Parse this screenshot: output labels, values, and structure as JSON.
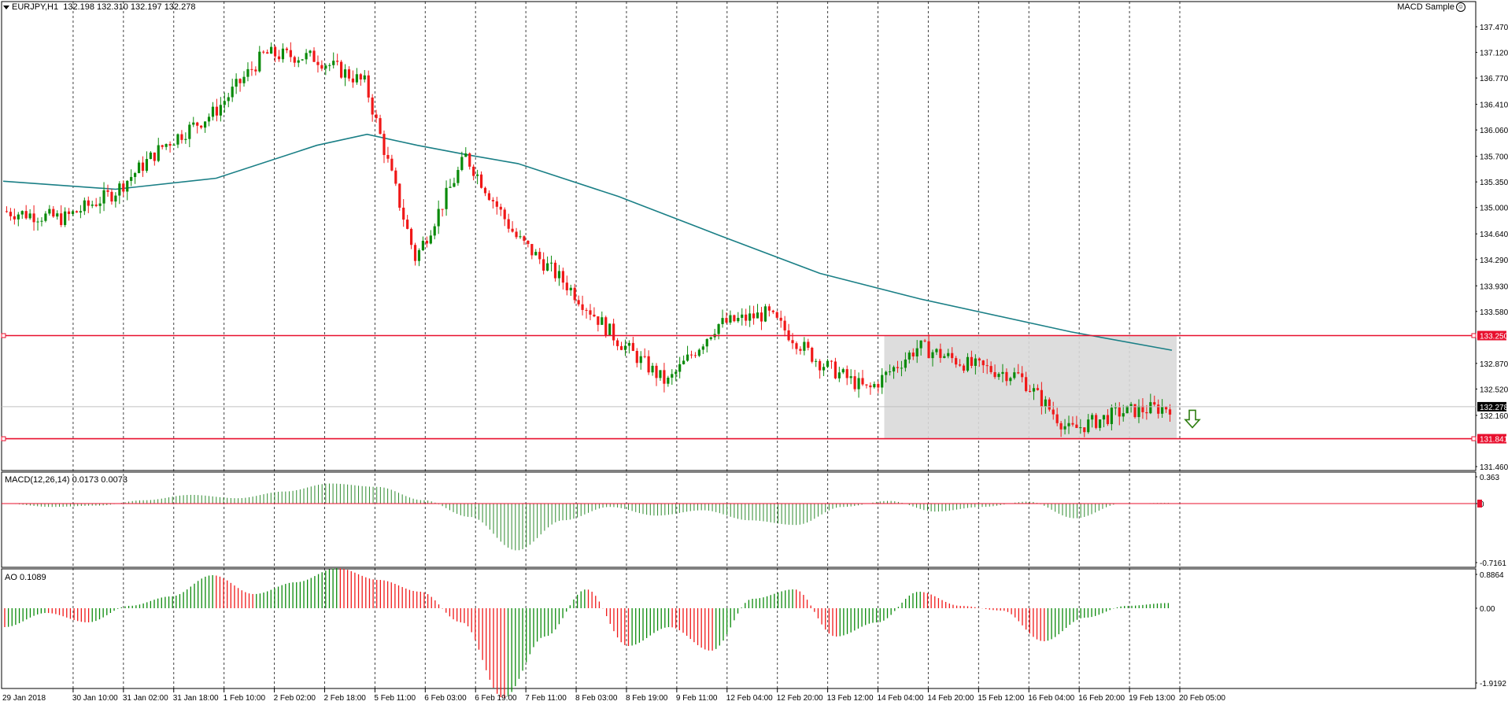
{
  "header": {
    "symbol": "EURJPY,H1",
    "ohlc": "132.198 132.310 132.197 132.278",
    "expert_name": "MACD Sample",
    "expert_icon": "smiley-icon"
  },
  "price_axis": {
    "labels": [
      "137.470",
      "137.120",
      "136.770",
      "136.410",
      "136.060",
      "135.700",
      "135.350",
      "135.000",
      "134.640",
      "134.290",
      "133.930",
      "133.580",
      "132.870",
      "132.520",
      "132.160",
      "131.460"
    ],
    "current_price": "132.278",
    "levels": [
      {
        "price": "133.250",
        "color": "#e8102e"
      },
      {
        "price": "131.841",
        "color": "#e8102e"
      }
    ]
  },
  "macd": {
    "label": "MACD(12,26,14) 0.0173 0.0073",
    "axis_top": "0.363",
    "axis_mid": "0",
    "axis_bottom": "-0.7161"
  },
  "ao": {
    "label": "AO 0.1089",
    "axis_top": "0.8864",
    "axis_mid": "0.00",
    "axis_bottom": "-1.9192"
  },
  "time_axis": [
    "29 Jan 2018",
    "30 Jan 10:00",
    "31 Jan 02:00",
    "31 Jan 18:00",
    "1 Feb 10:00",
    "2 Feb 02:00",
    "2 Feb 18:00",
    "5 Feb 11:00",
    "6 Feb 03:00",
    "6 Feb 19:00",
    "7 Feb 11:00",
    "8 Feb 03:00",
    "8 Feb 19:00",
    "9 Feb 11:00",
    "12 Feb 04:00",
    "12 Feb 20:00",
    "13 Feb 12:00",
    "14 Feb 04:00",
    "14 Feb 20:00",
    "15 Feb 12:00",
    "16 Feb 04:00",
    "16 Feb 20:00",
    "19 Feb 13:00",
    "20 Feb 05:00"
  ],
  "colors": {
    "bull": "#0a8a0a",
    "bear": "#f01818",
    "ma": "#1a7f86",
    "level": "#e8102e",
    "grid": "#000000",
    "range_box": "#d9d9d9",
    "arrow": "#2e7d10",
    "macd_hist": "#2e8b2e",
    "macd_signal": "#e8102e"
  },
  "chart_data": {
    "type": "candlestick",
    "symbol": "EURJPY",
    "timeframe": "H1",
    "price_range": [
      131.46,
      137.47
    ],
    "close_path": [
      {
        "t": "29 Jan 2018",
        "p": 134.95
      },
      {
        "t": "30 Jan 10:00",
        "p": 134.85
      },
      {
        "t": "31 Jan 02:00",
        "p": 135.2
      },
      {
        "t": "31 Jan 18:00",
        "p": 135.85
      },
      {
        "t": "1 Feb 10:00",
        "p": 136.3
      },
      {
        "t": "2 Feb 02:00",
        "p": 137.1
      },
      {
        "t": "2 Feb 18:00",
        "p": 137.05
      },
      {
        "t": "5 Feb 11:00",
        "p": 136.7
      },
      {
        "t": "6 Feb 03:00",
        "p": 134.3
      },
      {
        "t": "6 Feb 19:00",
        "p": 135.7
      },
      {
        "t": "7 Feb 11:00",
        "p": 134.6
      },
      {
        "t": "8 Feb 03:00",
        "p": 133.95
      },
      {
        "t": "8 Feb 19:00",
        "p": 133.2
      },
      {
        "t": "9 Feb 11:00",
        "p": 132.6
      },
      {
        "t": "12 Feb 04:00",
        "p": 133.4
      },
      {
        "t": "12 Feb 20:00",
        "p": 133.55
      },
      {
        "t": "13 Feb 12:00",
        "p": 132.9
      },
      {
        "t": "14 Feb 04:00",
        "p": 132.5
      },
      {
        "t": "14 Feb 20:00",
        "p": 133.1
      },
      {
        "t": "15 Feb 12:00",
        "p": 132.85
      },
      {
        "t": "16 Feb 04:00",
        "p": 132.7
      },
      {
        "t": "16 Feb 20:00",
        "p": 131.95
      },
      {
        "t": "19 Feb 13:00",
        "p": 132.2
      },
      {
        "t": "20 Feb 05:00",
        "p": 132.278
      }
    ],
    "moving_average_path": [
      {
        "t": "29 Jan 2018",
        "p": 135.36
      },
      {
        "t": "31 Jan 02:00",
        "p": 135.25
      },
      {
        "t": "1 Feb 10:00",
        "p": 135.4
      },
      {
        "t": "2 Feb 18:00",
        "p": 135.85
      },
      {
        "t": "5 Feb 11:00",
        "p": 136.0
      },
      {
        "t": "6 Feb 03:00",
        "p": 135.85
      },
      {
        "t": "6 Feb 19:00",
        "p": 135.72
      },
      {
        "t": "7 Feb 11:00",
        "p": 135.6
      },
      {
        "t": "8 Feb 19:00",
        "p": 135.15
      },
      {
        "t": "12 Feb 04:00",
        "p": 134.62
      },
      {
        "t": "13 Feb 12:00",
        "p": 134.1
      },
      {
        "t": "14 Feb 20:00",
        "p": 133.75
      },
      {
        "t": "16 Feb 20:00",
        "p": 133.3
      },
      {
        "t": "20 Feb 05:00",
        "p": 133.05
      }
    ],
    "levels": [
      133.25,
      131.841
    ],
    "range_box": {
      "from": "14 Feb 04:00",
      "to": "20 Feb 05:00",
      "top": 133.25,
      "bottom": 131.841
    },
    "signal_arrow": "down",
    "macd_hist": [
      0.0,
      -0.05,
      -0.03,
      0.05,
      0.13,
      0.08,
      0.18,
      0.3,
      0.25,
      0.05,
      -0.2,
      -0.7,
      -0.25,
      -0.05,
      -0.18,
      -0.1,
      -0.25,
      -0.32,
      -0.05,
      0.04,
      -0.12,
      -0.05,
      0.03,
      -0.22,
      0.0,
      0.01
    ],
    "ao_hist": [
      -0.4,
      -0.1,
      -0.3,
      0.05,
      0.25,
      0.7,
      0.3,
      0.55,
      0.85,
      0.6,
      0.35,
      -0.3,
      -1.9,
      -0.6,
      0.4,
      -0.8,
      -0.4,
      -0.9,
      0.2,
      0.4,
      -0.6,
      -0.3,
      0.35,
      0.05,
      -0.05,
      -0.7,
      -0.2,
      0.05,
      0.11
    ]
  }
}
